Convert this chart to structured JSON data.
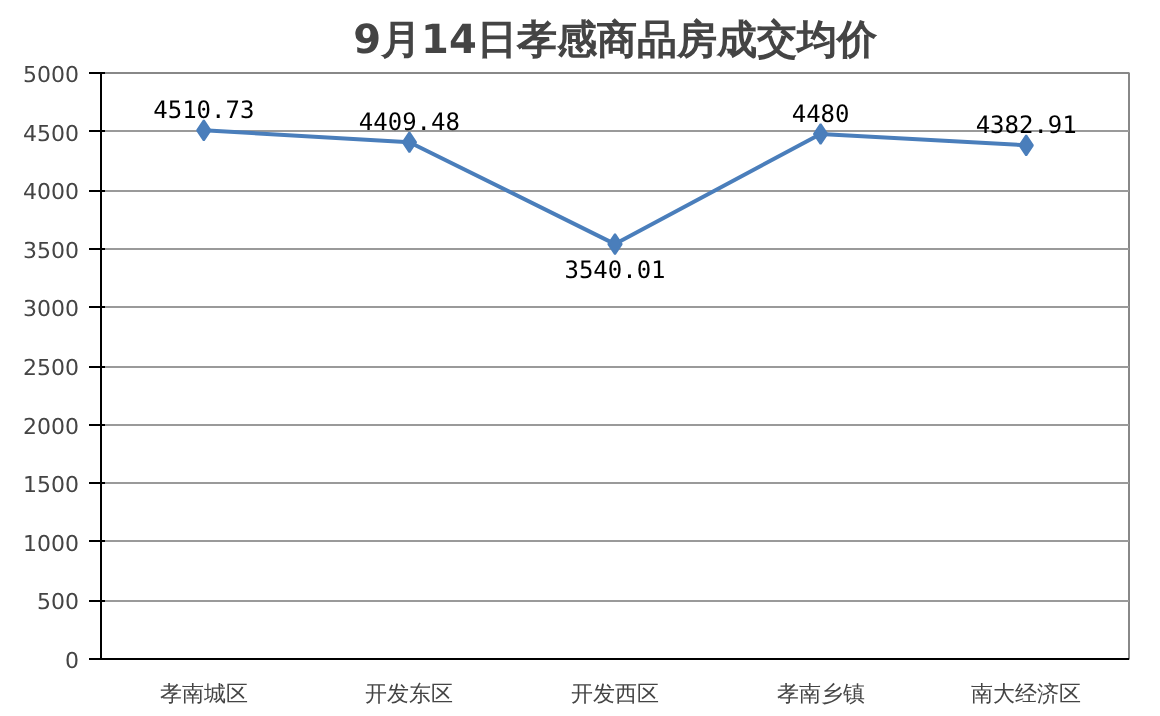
{
  "chart_data": {
    "type": "line",
    "title": "9月14日孝感商品房成交均价",
    "categories": [
      "孝南城区",
      "开发东区",
      "开发西区",
      "孝南乡镇",
      "南大经济区"
    ],
    "series": [
      {
        "color": "#4a7ebb",
        "values": [
          4510.73,
          4409.48,
          3540.01,
          4480,
          4382.91
        ]
      }
    ],
    "value_labels": [
      "4510.73",
      "4409.48",
      "3540.01",
      "4480",
      "4382.91"
    ],
    "ylim": [
      0,
      5000
    ],
    "yticks": [
      0,
      500,
      1000,
      1500,
      2000,
      2500,
      3000,
      3500,
      4000,
      4500,
      5000
    ],
    "grid": "y",
    "marker": "diamond",
    "line_style": "solid"
  }
}
